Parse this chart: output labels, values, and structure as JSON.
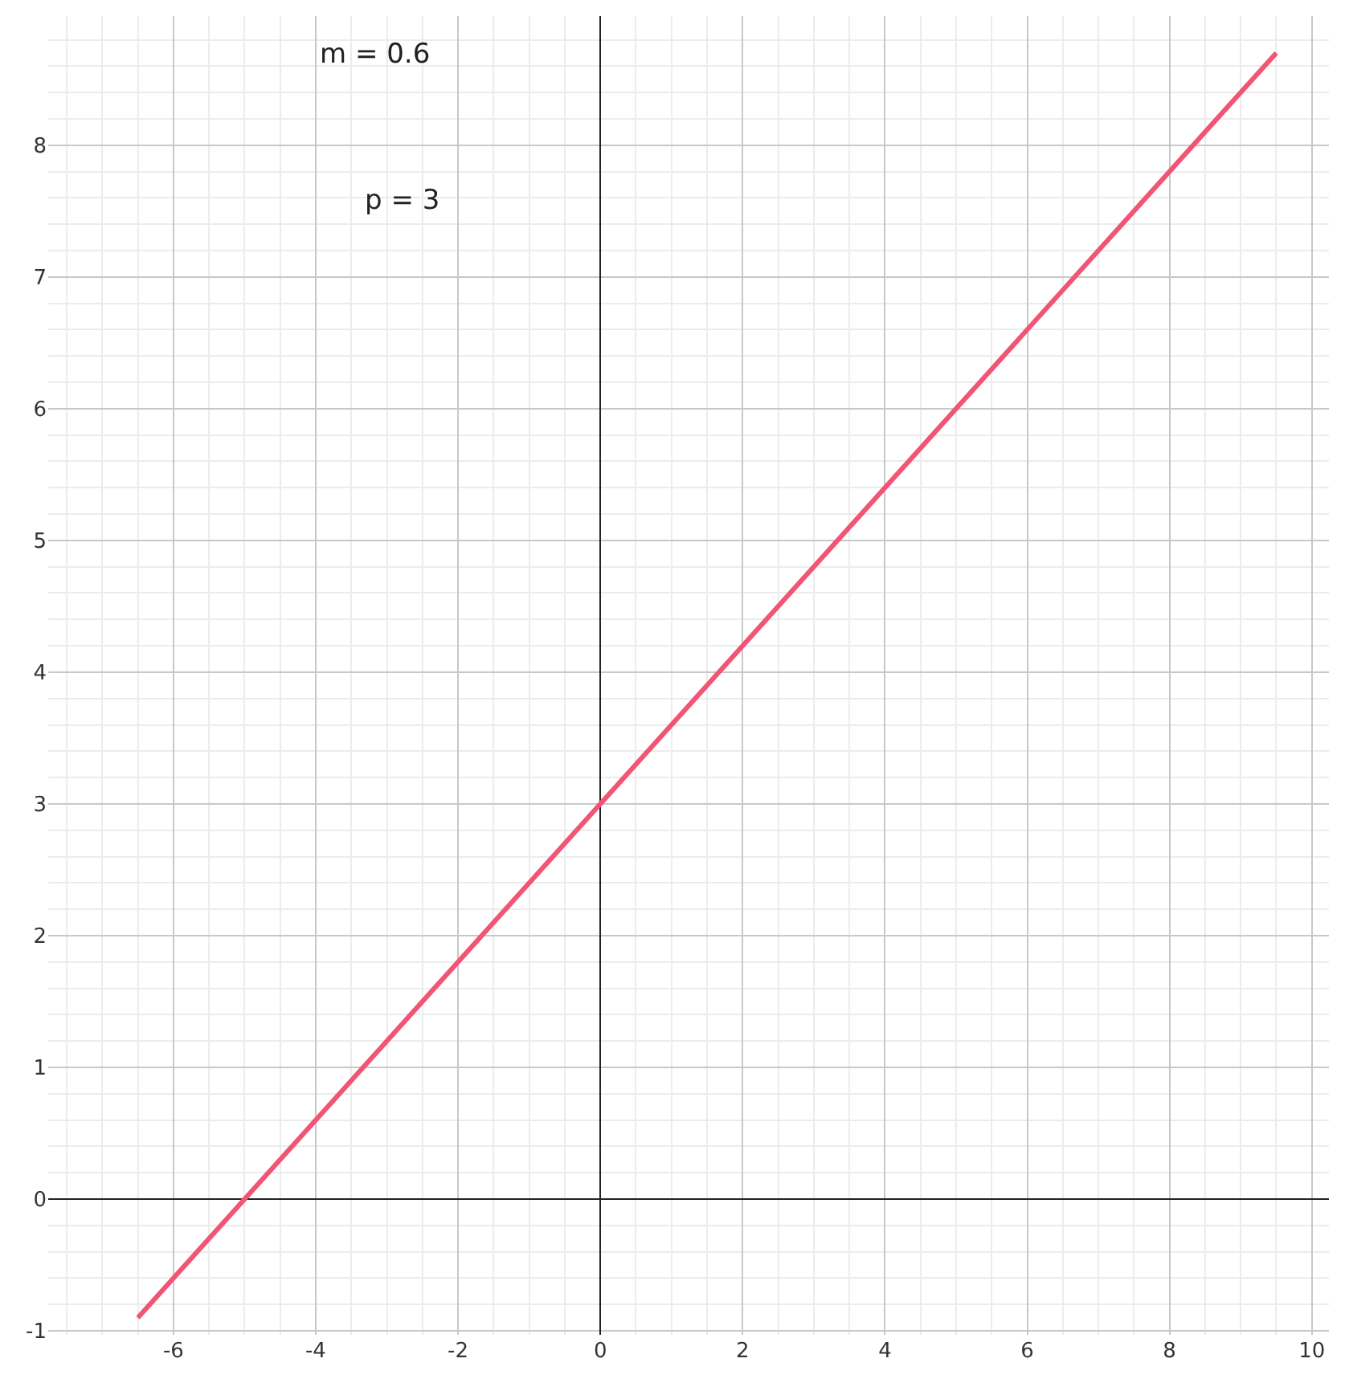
{
  "chart_data": {
    "type": "line",
    "x": [
      -6.5,
      9.5
    ],
    "series": [
      {
        "color": "#f25574",
        "values": [
          -0.9,
          8.7
        ]
      }
    ],
    "xlim": [
      -7.76,
      10.24
    ],
    "ylim": [
      -1.03,
      8.98
    ],
    "xticks": [
      -6,
      -4,
      -2,
      0,
      2,
      4,
      6,
      8,
      10
    ],
    "yticks": [
      -1,
      0,
      1,
      2,
      3,
      4,
      5,
      6,
      7,
      8
    ],
    "grid": true,
    "marker": "none",
    "line_style": "solid",
    "annotations": [
      "m = 0.6",
      "p = 3"
    ]
  }
}
